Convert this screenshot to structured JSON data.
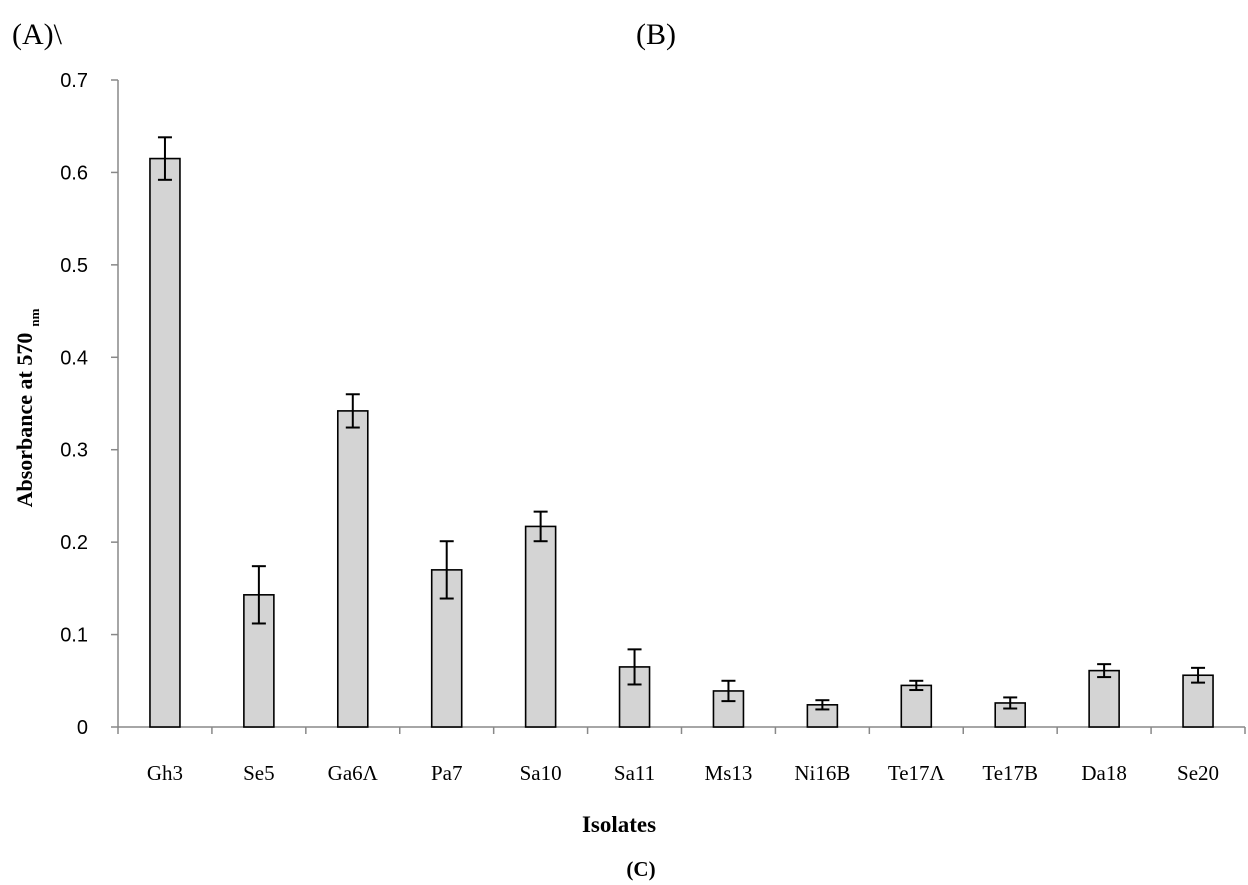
{
  "panel_labels": {
    "a": "(A)\\",
    "b": "(B)",
    "c": "(C)"
  },
  "chart_data": {
    "type": "bar",
    "categories": [
      "Gh3",
      "Se5",
      "Ga6Λ",
      "Pa7",
      "Sa10",
      "Sa11",
      "Ms13",
      "Ni16B",
      "Te17Λ",
      "Te17B",
      "Da18",
      "Se20"
    ],
    "values": [
      0.615,
      0.143,
      0.342,
      0.17,
      0.217,
      0.065,
      0.039,
      0.024,
      0.045,
      0.026,
      0.061,
      0.056
    ],
    "errors": [
      0.023,
      0.031,
      0.018,
      0.031,
      0.016,
      0.019,
      0.011,
      0.005,
      0.005,
      0.006,
      0.007,
      0.008
    ],
    "xlabel": "Isolates",
    "ylabel_main": "Absorbance at 570",
    "ylabel_sub": "nm",
    "ylim": [
      0,
      0.7
    ],
    "yticks": [
      "0",
      "0.1",
      "0.2",
      "0.3",
      "0.4",
      "0.5",
      "0.6",
      "0.7"
    ],
    "bar_color": "#d4d4d4",
    "error_bars": true,
    "grid": false
  }
}
